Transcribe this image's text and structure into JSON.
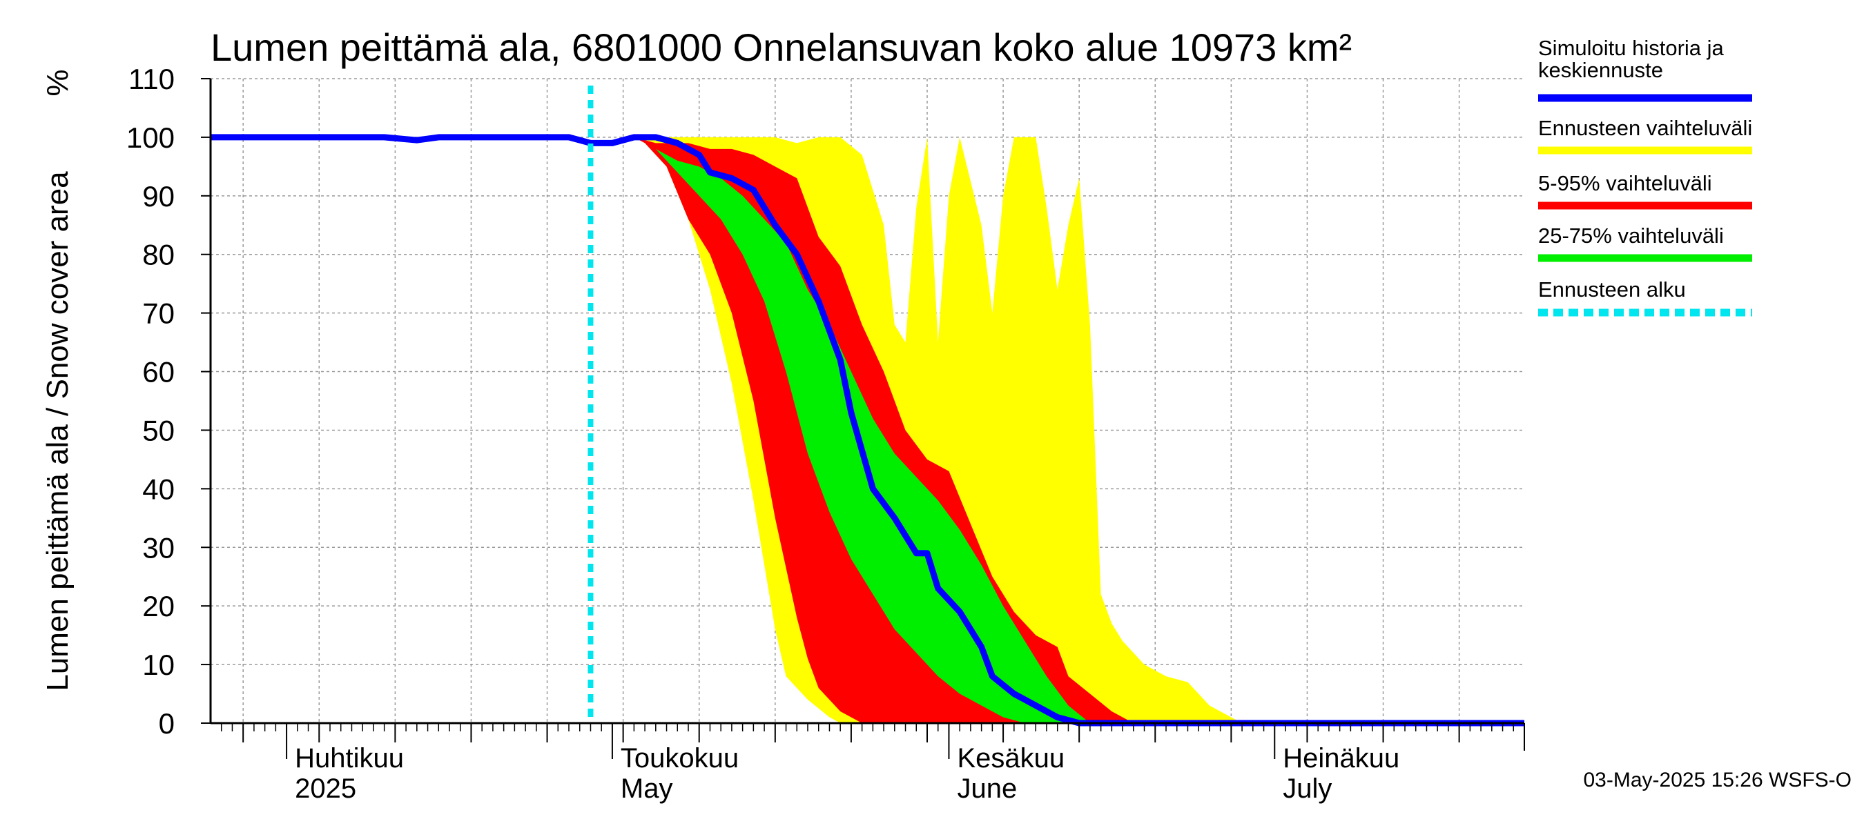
{
  "chart_data": {
    "type": "area",
    "title": "Lumen peittämä ala, 6801000 Onnelansuvan koko alue 10973 km²",
    "ylabel": "Lumen peittämä ala / Snow cover area",
    "yunit": "%",
    "ylim": [
      0,
      110
    ],
    "yticks": [
      0,
      10,
      20,
      30,
      40,
      50,
      60,
      70,
      80,
      90,
      100,
      110
    ],
    "xlim": [
      "2025-03-25",
      "2025-07-24"
    ],
    "x_axis_labels": [
      {
        "date": "2025-04-01",
        "fi": "Huhtikuu",
        "en": "2025"
      },
      {
        "date": "2025-05-01",
        "fi": "Toukokuu",
        "en": "May"
      },
      {
        "date": "2025-06-01",
        "fi": "Kesäkuu",
        "en": "June"
      },
      {
        "date": "2025-07-01",
        "fi": "Heinäkuu",
        "en": "July"
      }
    ],
    "forecast_start": "2025-04-29",
    "grid": true,
    "legend_position": "right",
    "legend": [
      {
        "label": "Simuloitu historia ja keskiennuste",
        "color": "#0000ff",
        "style": "solid"
      },
      {
        "label": "Ennusteen vaihteluväli",
        "color": "#ffff00",
        "style": "solid"
      },
      {
        "label": "5-95% vaihteluväli",
        "color": "#ff0000",
        "style": "solid"
      },
      {
        "label": "25-75% vaihteluväli",
        "color": "#00ee00",
        "style": "solid"
      },
      {
        "label": "Ennusteen alku",
        "color": "#00e5ee",
        "style": "dashed"
      }
    ],
    "series": [
      {
        "name": "Ennusteen vaihteluväli",
        "kind": "band",
        "color": "#ffff00",
        "upper": [
          [
            "2025-04-29",
            100
          ],
          [
            "2025-05-03",
            100
          ],
          [
            "2025-05-08",
            100
          ],
          [
            "2025-05-12",
            100
          ],
          [
            "2025-05-14",
            100
          ],
          [
            "2025-05-16",
            100
          ],
          [
            "2025-05-18",
            99
          ],
          [
            "2025-05-20",
            100
          ],
          [
            "2025-05-22",
            100
          ],
          [
            "2025-05-24",
            97
          ],
          [
            "2025-05-26",
            85
          ],
          [
            "2025-05-27",
            68
          ],
          [
            "2025-05-28",
            65
          ],
          [
            "2025-05-29",
            88
          ],
          [
            "2025-05-30",
            100
          ],
          [
            "2025-05-31",
            65
          ],
          [
            "2025-06-01",
            90
          ],
          [
            "2025-06-02",
            100
          ],
          [
            "2025-06-04",
            85
          ],
          [
            "2025-06-05",
            70
          ],
          [
            "2025-06-06",
            90
          ],
          [
            "2025-06-07",
            100
          ],
          [
            "2025-06-09",
            100
          ],
          [
            "2025-06-10",
            88
          ],
          [
            "2025-06-11",
            74
          ],
          [
            "2025-06-12",
            85
          ],
          [
            "2025-06-13",
            93
          ],
          [
            "2025-06-14",
            68
          ],
          [
            "2025-06-15",
            22
          ],
          [
            "2025-06-16",
            17
          ],
          [
            "2025-06-17",
            14
          ],
          [
            "2025-06-19",
            10
          ],
          [
            "2025-06-21",
            8
          ],
          [
            "2025-06-23",
            7
          ],
          [
            "2025-06-25",
            3
          ],
          [
            "2025-06-27",
            1
          ],
          [
            "2025-06-28",
            0
          ]
        ],
        "lower": [
          [
            "2025-04-29",
            100
          ],
          [
            "2025-05-03",
            100
          ],
          [
            "2025-05-04",
            99
          ],
          [
            "2025-05-06",
            95
          ],
          [
            "2025-05-08",
            86
          ],
          [
            "2025-05-10",
            74
          ],
          [
            "2025-05-12",
            58
          ],
          [
            "2025-05-14",
            38
          ],
          [
            "2025-05-16",
            16
          ],
          [
            "2025-05-17",
            8
          ],
          [
            "2025-05-19",
            4
          ],
          [
            "2025-05-21",
            1
          ],
          [
            "2025-05-22",
            0
          ]
        ]
      },
      {
        "name": "5-95% vaihteluväli",
        "kind": "band",
        "color": "#ff0000",
        "upper": [
          [
            "2025-04-29",
            100
          ],
          [
            "2025-05-03",
            100
          ],
          [
            "2025-05-05",
            99
          ],
          [
            "2025-05-08",
            99
          ],
          [
            "2025-05-10",
            98
          ],
          [
            "2025-05-12",
            98
          ],
          [
            "2025-05-14",
            97
          ],
          [
            "2025-05-15",
            96
          ],
          [
            "2025-05-16",
            95
          ],
          [
            "2025-05-18",
            93
          ],
          [
            "2025-05-20",
            83
          ],
          [
            "2025-05-22",
            78
          ],
          [
            "2025-05-24",
            68
          ],
          [
            "2025-05-26",
            60
          ],
          [
            "2025-05-28",
            50
          ],
          [
            "2025-05-30",
            45
          ],
          [
            "2025-06-01",
            43
          ],
          [
            "2025-06-03",
            34
          ],
          [
            "2025-06-05",
            25
          ],
          [
            "2025-06-07",
            19
          ],
          [
            "2025-06-09",
            15
          ],
          [
            "2025-06-11",
            13
          ],
          [
            "2025-06-12",
            8
          ],
          [
            "2025-06-14",
            5
          ],
          [
            "2025-06-16",
            2
          ],
          [
            "2025-06-18",
            0
          ]
        ],
        "lower": [
          [
            "2025-04-29",
            100
          ],
          [
            "2025-05-03",
            100
          ],
          [
            "2025-05-04",
            99
          ],
          [
            "2025-05-06",
            95
          ],
          [
            "2025-05-08",
            86
          ],
          [
            "2025-05-10",
            80
          ],
          [
            "2025-05-12",
            70
          ],
          [
            "2025-05-14",
            55
          ],
          [
            "2025-05-16",
            35
          ],
          [
            "2025-05-18",
            18
          ],
          [
            "2025-05-19",
            11
          ],
          [
            "2025-05-20",
            6
          ],
          [
            "2025-05-22",
            2
          ],
          [
            "2025-05-24",
            0
          ]
        ]
      },
      {
        "name": "25-75% vaihteluväli",
        "kind": "band",
        "color": "#00ee00",
        "upper": [
          [
            "2025-04-29",
            100
          ],
          [
            "2025-05-03",
            100
          ],
          [
            "2025-05-05",
            98
          ],
          [
            "2025-05-07",
            96
          ],
          [
            "2025-05-09",
            95
          ],
          [
            "2025-05-11",
            93
          ],
          [
            "2025-05-13",
            90
          ],
          [
            "2025-05-15",
            86
          ],
          [
            "2025-05-17",
            82
          ],
          [
            "2025-05-19",
            74
          ],
          [
            "2025-05-21",
            68
          ],
          [
            "2025-05-23",
            60
          ],
          [
            "2025-05-25",
            52
          ],
          [
            "2025-05-27",
            46
          ],
          [
            "2025-05-29",
            42
          ],
          [
            "2025-05-31",
            38
          ],
          [
            "2025-06-02",
            33
          ],
          [
            "2025-06-04",
            27
          ],
          [
            "2025-06-06",
            20
          ],
          [
            "2025-06-08",
            14
          ],
          [
            "2025-06-10",
            8
          ],
          [
            "2025-06-12",
            3
          ],
          [
            "2025-06-14",
            0
          ]
        ],
        "lower": [
          [
            "2025-04-29",
            100
          ],
          [
            "2025-05-03",
            100
          ],
          [
            "2025-05-05",
            98
          ],
          [
            "2025-05-07",
            94
          ],
          [
            "2025-05-09",
            90
          ],
          [
            "2025-05-11",
            86
          ],
          [
            "2025-05-13",
            80
          ],
          [
            "2025-05-15",
            72
          ],
          [
            "2025-05-17",
            60
          ],
          [
            "2025-05-19",
            46
          ],
          [
            "2025-05-21",
            36
          ],
          [
            "2025-05-23",
            28
          ],
          [
            "2025-05-25",
            22
          ],
          [
            "2025-05-27",
            16
          ],
          [
            "2025-05-29",
            12
          ],
          [
            "2025-05-31",
            8
          ],
          [
            "2025-06-02",
            5
          ],
          [
            "2025-06-04",
            3
          ],
          [
            "2025-06-06",
            1
          ],
          [
            "2025-06-08",
            0
          ]
        ]
      },
      {
        "name": "Simuloitu historia ja keskiennuste",
        "kind": "line",
        "color": "#0000ff",
        "points": [
          [
            "2025-03-25",
            100
          ],
          [
            "2025-04-05",
            100
          ],
          [
            "2025-04-10",
            100
          ],
          [
            "2025-04-13",
            99.5
          ],
          [
            "2025-04-15",
            100
          ],
          [
            "2025-04-20",
            100
          ],
          [
            "2025-04-27",
            100
          ],
          [
            "2025-04-29",
            99
          ],
          [
            "2025-05-01",
            99
          ],
          [
            "2025-05-03",
            100
          ],
          [
            "2025-05-05",
            100
          ],
          [
            "2025-05-07",
            99
          ],
          [
            "2025-05-09",
            97
          ],
          [
            "2025-05-10",
            94
          ],
          [
            "2025-05-12",
            93
          ],
          [
            "2025-05-14",
            91
          ],
          [
            "2025-05-16",
            85
          ],
          [
            "2025-05-18",
            80
          ],
          [
            "2025-05-20",
            72
          ],
          [
            "2025-05-22",
            62
          ],
          [
            "2025-05-23",
            53
          ],
          [
            "2025-05-25",
            40
          ],
          [
            "2025-05-27",
            35
          ],
          [
            "2025-05-29",
            29
          ],
          [
            "2025-05-30",
            29
          ],
          [
            "2025-05-31",
            23
          ],
          [
            "2025-06-02",
            19
          ],
          [
            "2025-06-04",
            13
          ],
          [
            "2025-06-05",
            8
          ],
          [
            "2025-06-07",
            5
          ],
          [
            "2025-06-09",
            3
          ],
          [
            "2025-06-11",
            1
          ],
          [
            "2025-06-13",
            0
          ],
          [
            "2025-07-24",
            0
          ]
        ]
      }
    ]
  },
  "timestamp": "03-May-2025 15:26 WSFS-O"
}
